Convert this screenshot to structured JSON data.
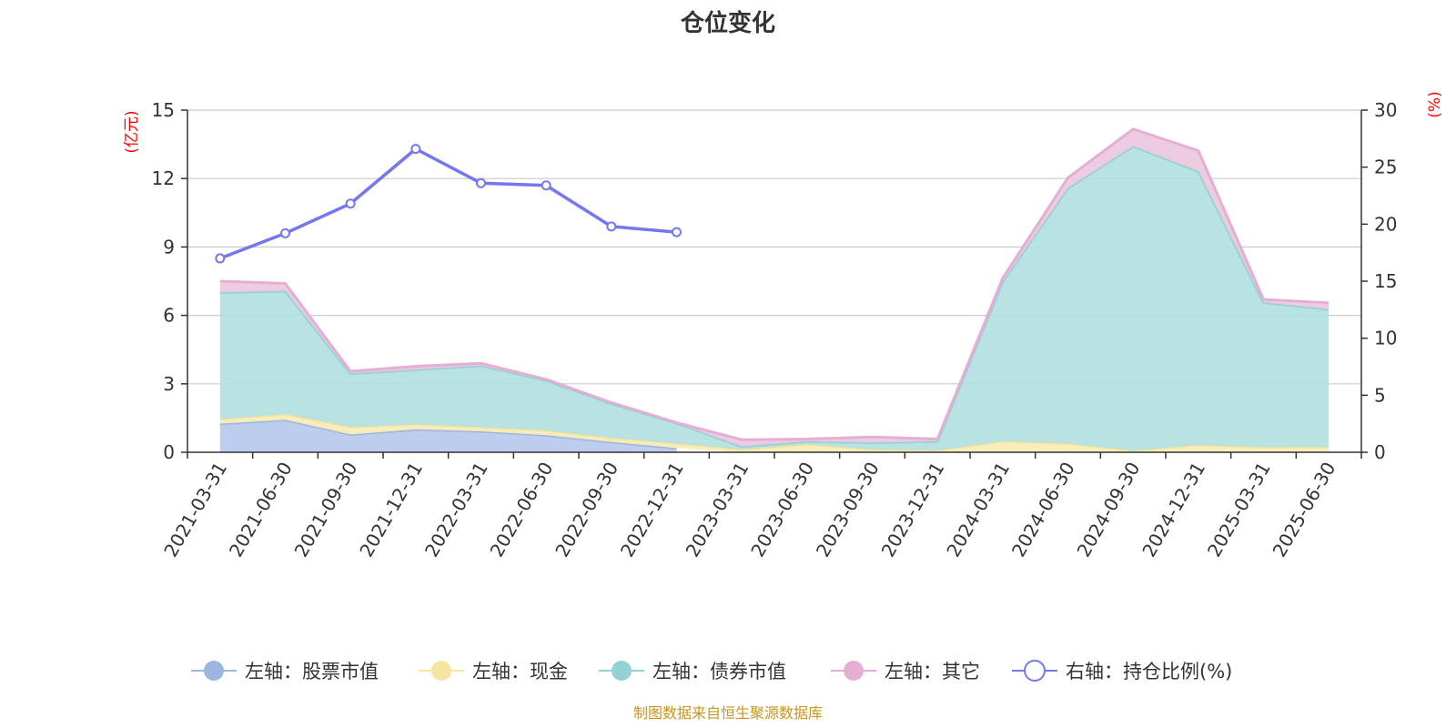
{
  "chart_data": {
    "type": "area",
    "title": "仓位变化",
    "left_axis_unit": "(亿元)",
    "right_axis_unit": "(%)",
    "categories": [
      "2021-03-31",
      "2021-06-30",
      "2021-09-30",
      "2021-12-31",
      "2022-03-31",
      "2022-06-30",
      "2022-09-30",
      "2022-12-31",
      "2023-03-31",
      "2023-06-30",
      "2023-09-30",
      "2023-12-31",
      "2024-03-31",
      "2024-06-30",
      "2024-09-30",
      "2024-12-31",
      "2025-03-31",
      "2025-06-30"
    ],
    "left_ylim": [
      0,
      15
    ],
    "left_ticks": [
      0,
      3,
      6,
      9,
      12,
      15
    ],
    "right_ylim": [
      0,
      30
    ],
    "right_ticks": [
      0,
      5,
      10,
      15,
      20,
      25,
      30
    ],
    "grid": true,
    "legend_position": "bottom",
    "stacked_series": [
      {
        "name": "左轴：股票市值",
        "color": "#9db6e0",
        "fill": "#b6c9eb",
        "values": [
          1.25,
          1.42,
          0.78,
          1.0,
          0.92,
          0.75,
          0.45,
          0.18,
          null,
          null,
          null,
          null,
          null,
          null,
          null,
          null,
          null,
          null
        ]
      },
      {
        "name": "左轴：现金",
        "color": "#f6e5a0",
        "fill": "#f8ebb6",
        "values": [
          0.2,
          0.25,
          0.32,
          0.22,
          0.18,
          0.2,
          0.18,
          0.2,
          0.12,
          0.35,
          0.12,
          0.08,
          0.48,
          0.38,
          0.07,
          0.32,
          0.22,
          0.22
        ]
      },
      {
        "name": "左轴：债券市值",
        "color": "#92d2d2",
        "fill": "#b3e0e0",
        "values": [
          5.55,
          5.4,
          2.35,
          2.4,
          2.7,
          2.2,
          1.5,
          0.9,
          0.13,
          0.13,
          0.3,
          0.4,
          7.0,
          11.2,
          13.35,
          12.0,
          6.35,
          6.05
        ]
      },
      {
        "name": "左轴：其它",
        "color": "#e5aed5",
        "fill": "#ecc8e0",
        "values": [
          0.5,
          0.33,
          0.1,
          0.15,
          0.1,
          0.05,
          0.05,
          0.02,
          0.3,
          0.1,
          0.25,
          0.1,
          0.15,
          0.45,
          0.75,
          0.9,
          0.13,
          0.28
        ]
      }
    ],
    "line_series": {
      "name": "右轴：持仓比例(%)",
      "color": "#7477ed",
      "values": [
        17.0,
        19.2,
        21.8,
        26.6,
        23.6,
        23.4,
        19.8,
        19.3
      ]
    }
  },
  "footer": "制图数据来自恒生聚源数据库"
}
